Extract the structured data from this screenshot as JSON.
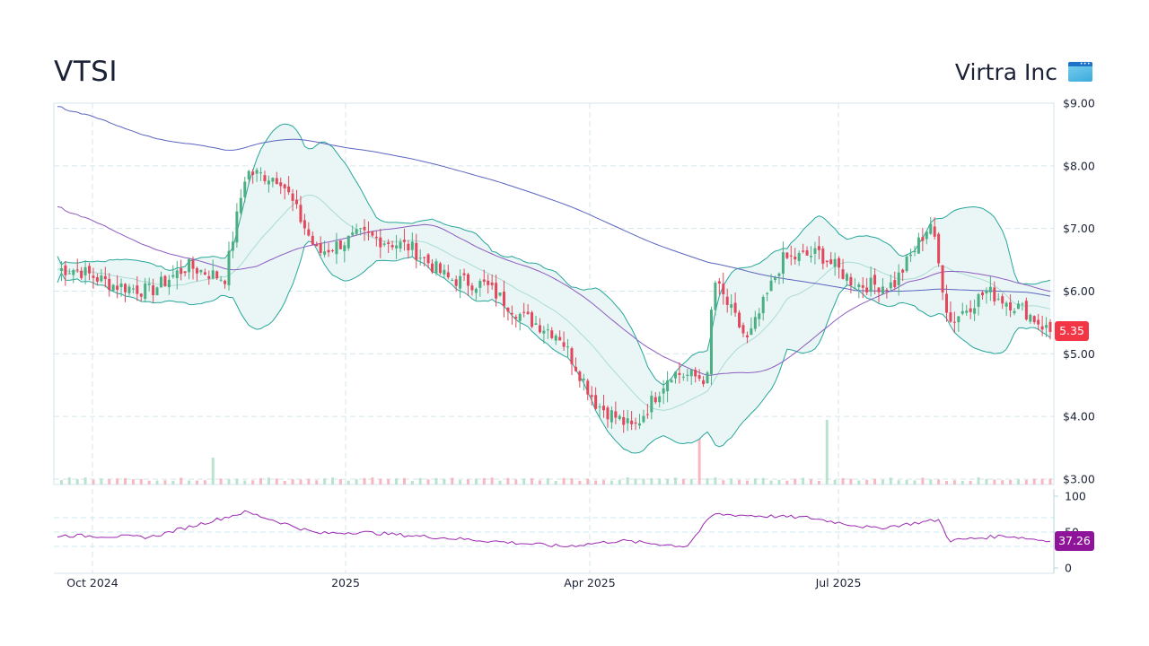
{
  "header": {
    "ticker": "VTSI",
    "company_name": "Virtra Inc",
    "logo_icon": "browser-window-icon"
  },
  "badges": {
    "last_price": "5.35",
    "last_price_color": "#f23645",
    "rsi_value": "37.26",
    "rsi_color": "#8e1599"
  },
  "colors": {
    "up": "#4caf84",
    "down": "#e2475c",
    "bb_band": "#26a69a",
    "bb_fill": "#e8f5f4",
    "bb_mid": "#a9dcd4",
    "sma_fast": "#8c5cc0",
    "sma_slow": "#5c64c0",
    "rsi": "#9c27b0",
    "grid": "#d5e6ec"
  },
  "chart_data": [
    {
      "type": "candlestick",
      "title": "VTSI",
      "subtitle": "Virtra Inc",
      "xlabel": "",
      "ylabel": "",
      "y_ticks": [
        "$9.00",
        "$8.00",
        "$7.00",
        "$6.00",
        "$5.00",
        "$4.00",
        "$3.00"
      ],
      "ylim": [
        3.0,
        9.0
      ],
      "x_ticks": [
        "Oct 2024",
        "2025",
        "Apr 2025",
        "Jul 2025"
      ],
      "grid": true,
      "overlays": [
        "Bollinger Bands (20,2)",
        "SMA 50",
        "SMA 200",
        "Volume"
      ],
      "last_close": 5.35,
      "approx_closes": [
        {
          "x": "2024-09-17",
          "close": 6.35
        },
        {
          "x": "2024-10-01",
          "close": 6.1
        },
        {
          "x": "2024-10-15",
          "close": 6.0
        },
        {
          "x": "2024-10-29",
          "close": 6.4
        },
        {
          "x": "2024-11-12",
          "close": 6.2
        },
        {
          "x": "2024-11-20",
          "close": 7.9
        },
        {
          "x": "2024-12-03",
          "close": 7.8
        },
        {
          "x": "2024-12-17",
          "close": 6.6
        },
        {
          "x": "2025-01-02",
          "close": 6.9
        },
        {
          "x": "2025-01-21",
          "close": 6.7
        },
        {
          "x": "2025-02-04",
          "close": 6.2
        },
        {
          "x": "2025-02-18",
          "close": 6.1
        },
        {
          "x": "2025-03-04",
          "close": 5.6
        },
        {
          "x": "2025-03-18",
          "close": 5.3
        },
        {
          "x": "2025-04-01",
          "close": 4.2
        },
        {
          "x": "2025-04-15",
          "close": 3.8
        },
        {
          "x": "2025-04-29",
          "close": 4.7
        },
        {
          "x": "2025-05-13",
          "close": 4.6
        },
        {
          "x": "2025-05-15",
          "close": 6.2
        },
        {
          "x": "2025-05-28",
          "close": 5.2
        },
        {
          "x": "2025-06-10",
          "close": 6.5
        },
        {
          "x": "2025-06-24",
          "close": 6.6
        },
        {
          "x": "2025-07-08",
          "close": 6.1
        },
        {
          "x": "2025-07-22",
          "close": 6.1
        },
        {
          "x": "2025-08-05",
          "close": 7.1
        },
        {
          "x": "2025-08-12",
          "close": 5.5
        },
        {
          "x": "2025-08-26",
          "close": 6.0
        },
        {
          "x": "2025-09-09",
          "close": 5.7
        },
        {
          "x": "2025-09-19",
          "close": 5.35
        }
      ]
    },
    {
      "type": "line",
      "title": "RSI",
      "y_ticks": [
        "100",
        "50",
        "0"
      ],
      "ylim": [
        0,
        100
      ],
      "reference_lines": [
        70,
        50,
        30
      ],
      "last_value": 37.26,
      "approx_values": [
        {
          "x": "2024-09-17",
          "rsi": 45
        },
        {
          "x": "2024-10-15",
          "rsi": 43
        },
        {
          "x": "2024-11-20",
          "rsi": 78
        },
        {
          "x": "2024-12-17",
          "rsi": 48
        },
        {
          "x": "2025-01-02",
          "rsi": 50
        },
        {
          "x": "2025-02-18",
          "rsi": 38
        },
        {
          "x": "2025-03-20",
          "rsi": 30
        },
        {
          "x": "2025-04-10",
          "rsi": 38
        },
        {
          "x": "2025-05-05",
          "rsi": 30
        },
        {
          "x": "2025-05-15",
          "rsi": 75
        },
        {
          "x": "2025-06-20",
          "rsi": 70
        },
        {
          "x": "2025-07-15",
          "rsi": 55
        },
        {
          "x": "2025-08-08",
          "rsi": 67
        },
        {
          "x": "2025-08-12",
          "rsi": 38
        },
        {
          "x": "2025-09-02",
          "rsi": 45
        },
        {
          "x": "2025-09-19",
          "rsi": 37.26
        }
      ]
    }
  ]
}
